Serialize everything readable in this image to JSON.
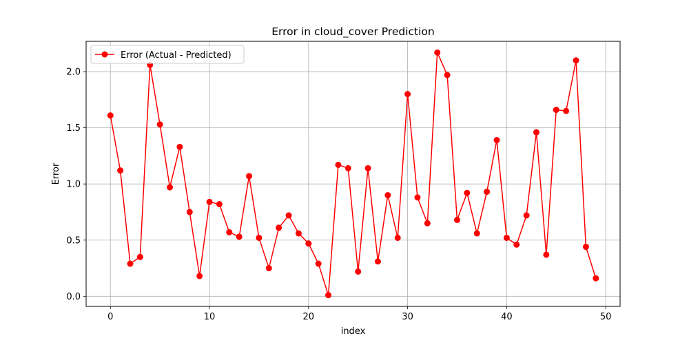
{
  "chart_data": {
    "type": "line",
    "title": "Error in cloud_cover Prediction",
    "xlabel": "index",
    "ylabel": "Error",
    "xlim": [
      -2.45,
      51.45
    ],
    "ylim": [
      -0.09,
      2.27
    ],
    "xticks": [
      0,
      10,
      20,
      30,
      40,
      50
    ],
    "yticks": [
      0.0,
      0.5,
      1.0,
      1.5,
      2.0
    ],
    "xtick_labels": [
      "0",
      "10",
      "20",
      "30",
      "40",
      "50"
    ],
    "ytick_labels": [
      "0.0",
      "0.5",
      "1.0",
      "1.5",
      "2.0"
    ],
    "grid": true,
    "legend_position": "top-left",
    "series": [
      {
        "name": "Error (Actual - Predicted)",
        "color": "#ff0000",
        "marker": "circle",
        "x": [
          0,
          1,
          2,
          3,
          4,
          5,
          6,
          7,
          8,
          9,
          10,
          11,
          12,
          13,
          14,
          15,
          16,
          17,
          18,
          19,
          20,
          21,
          22,
          23,
          24,
          25,
          26,
          27,
          28,
          29,
          30,
          31,
          32,
          33,
          34,
          35,
          36,
          37,
          38,
          39,
          40,
          41,
          42,
          43,
          44,
          45,
          46,
          47,
          48,
          49
        ],
        "values": [
          1.61,
          1.12,
          0.29,
          0.35,
          2.06,
          1.53,
          0.97,
          1.33,
          0.75,
          0.18,
          0.84,
          0.82,
          0.57,
          0.53,
          1.07,
          0.52,
          0.25,
          0.61,
          0.72,
          0.56,
          0.47,
          0.29,
          0.01,
          1.17,
          1.14,
          0.22,
          1.14,
          0.31,
          0.9,
          0.52,
          1.8,
          0.88,
          0.65,
          2.17,
          1.97,
          0.68,
          0.92,
          0.56,
          0.93,
          1.39,
          0.52,
          0.46,
          0.72,
          1.46,
          0.37,
          1.66,
          1.65,
          2.1,
          0.44,
          0.16
        ]
      }
    ]
  }
}
